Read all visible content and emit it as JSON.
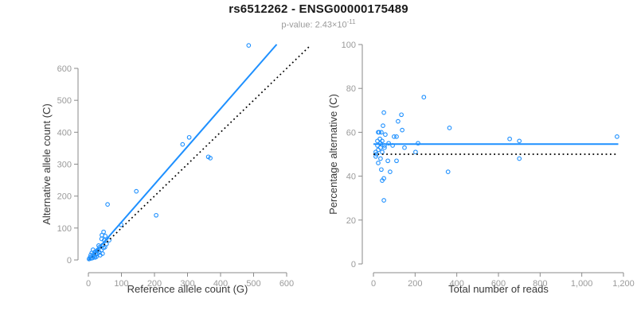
{
  "header": {
    "title": "rs6512262 - ENSG00000175489",
    "subtitle_prefix": "p-value: 2.43×10",
    "subtitle_exponent": "-11"
  },
  "colors": {
    "accent_blue": "#1E90FF",
    "identity_black": "#000000",
    "axis_gray": "#8a8a8a",
    "tick_label_gray": "#9a9a9a",
    "axis_title_dark": "#383838"
  },
  "chart_data": [
    {
      "type": "scatter",
      "panel": "left",
      "xlabel": "Reference allele count (G)",
      "ylabel": "Alternative allele count (C)",
      "xticks": {
        "values": [
          0,
          100,
          200,
          300,
          400,
          500,
          600
        ],
        "labels": [
          "0",
          "100",
          "200",
          "300",
          "400",
          "500",
          "600"
        ]
      },
      "yticks": {
        "values": [
          0,
          100,
          200,
          300,
          400,
          500,
          600
        ],
        "labels": [
          "0",
          "100",
          "200",
          "300",
          "400",
          "500",
          "600"
        ]
      },
      "xlim": [
        0,
        680
      ],
      "ylim": [
        0,
        690
      ],
      "grid": false,
      "legend": false,
      "point_color": "#1E90FF",
      "points": [
        [
          2,
          3
        ],
        [
          5,
          8
        ],
        [
          7,
          15
        ],
        [
          8,
          5
        ],
        [
          10,
          22
        ],
        [
          12,
          6
        ],
        [
          14,
          32
        ],
        [
          16,
          18
        ],
        [
          17,
          12
        ],
        [
          19,
          25
        ],
        [
          20,
          8
        ],
        [
          22,
          18
        ],
        [
          24,
          10
        ],
        [
          25,
          28
        ],
        [
          27,
          20
        ],
        [
          29,
          32
        ],
        [
          31,
          45
        ],
        [
          33,
          24
        ],
        [
          34,
          40
        ],
        [
          36,
          15
        ],
        [
          39,
          30
        ],
        [
          40,
          66
        ],
        [
          41,
          78
        ],
        [
          43,
          20
        ],
        [
          43,
          46
        ],
        [
          46,
          38
        ],
        [
          46,
          88
        ],
        [
          48,
          62
        ],
        [
          50,
          40
        ],
        [
          51,
          75
        ],
        [
          55,
          50
        ],
        [
          58,
          174
        ],
        [
          63,
          62
        ],
        [
          99,
          110
        ],
        [
          145,
          215
        ],
        [
          205,
          140
        ],
        [
          285,
          362
        ],
        [
          305,
          384
        ],
        [
          363,
          323
        ],
        [
          369,
          319
        ],
        [
          485,
          672
        ]
      ],
      "lines": [
        {
          "name": "identity-line",
          "style": "dotted",
          "color": "#000000",
          "x1": 0,
          "y1": 0,
          "x2": 670,
          "y2": 670
        },
        {
          "name": "regression-line",
          "style": "solid",
          "color": "#1E90FF",
          "x1": 0,
          "y1": 0,
          "x2": 570,
          "y2": 675
        }
      ]
    },
    {
      "type": "scatter",
      "panel": "right",
      "xlabel": "Total number of reads",
      "ylabel": "Percentage alternative (C)",
      "xticks": {
        "values": [
          0,
          200,
          400,
          600,
          800,
          1000,
          1200
        ],
        "labels": [
          "0",
          "200",
          "400",
          "600",
          "800",
          "1,000",
          "1,200"
        ]
      },
      "yticks": {
        "values": [
          0,
          20,
          40,
          60,
          80,
          100
        ],
        "labels": [
          "0",
          "20",
          "40",
          "60",
          "80",
          "100"
        ]
      },
      "xlim": [
        0,
        1210
      ],
      "ylim": [
        0,
        100
      ],
      "grid": false,
      "legend": false,
      "point_color": "#1E90FF",
      "points": [
        [
          11,
          51
        ],
        [
          11,
          49
        ],
        [
          15,
          50
        ],
        [
          19,
          56
        ],
        [
          19,
          54
        ],
        [
          23,
          60
        ],
        [
          23,
          52
        ],
        [
          23,
          46
        ],
        [
          27,
          60
        ],
        [
          31,
          57
        ],
        [
          34,
          55
        ],
        [
          34,
          53
        ],
        [
          34,
          48
        ],
        [
          38,
          60
        ],
        [
          38,
          43
        ],
        [
          42,
          56
        ],
        [
          42,
          51
        ],
        [
          42,
          38
        ],
        [
          46,
          63
        ],
        [
          50,
          69
        ],
        [
          50,
          39
        ],
        [
          50,
          29
        ],
        [
          53,
          54
        ],
        [
          53,
          53
        ],
        [
          57,
          59
        ],
        [
          69,
          47
        ],
        [
          73,
          55
        ],
        [
          80,
          42
        ],
        [
          92,
          54
        ],
        [
          99,
          58
        ],
        [
          111,
          58
        ],
        [
          111,
          47
        ],
        [
          118,
          65
        ],
        [
          134,
          68
        ],
        [
          138,
          61
        ],
        [
          149,
          53
        ],
        [
          202,
          51
        ],
        [
          214,
          55
        ],
        [
          242,
          76
        ],
        [
          358,
          42
        ],
        [
          365,
          62
        ],
        [
          654,
          57
        ],
        [
          700,
          56
        ],
        [
          700,
          48
        ],
        [
          1169,
          58
        ]
      ],
      "lines": [
        {
          "name": "null-line",
          "style": "dotted",
          "color": "#000000",
          "x1": 0,
          "y1": 50,
          "x2": 1175,
          "y2": 50
        },
        {
          "name": "mean-line",
          "style": "solid",
          "color": "#1E90FF",
          "x1": 0,
          "y1": 54.6,
          "x2": 1175,
          "y2": 54.6
        }
      ]
    }
  ]
}
